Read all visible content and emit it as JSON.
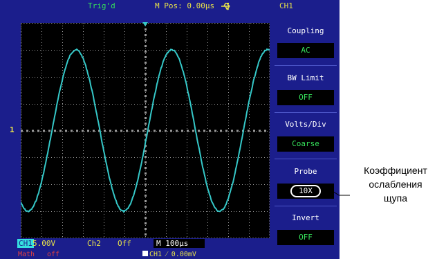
{
  "status": {
    "trigger_state": "Trig'd",
    "m_pos": "M Pos: 0.00μs",
    "channel": "CH1"
  },
  "menu": {
    "items": [
      {
        "title": "Coupling",
        "value": "AC"
      },
      {
        "title": "BW  Limit",
        "value": "OFF"
      },
      {
        "title": "Volts/Div",
        "value": "Coarse"
      },
      {
        "title": "Probe",
        "value": "10X"
      },
      {
        "title": "Invert",
        "value": "OFF"
      }
    ]
  },
  "bottom": {
    "ch1_label": "CH1",
    "ch1_scale": "5.00V",
    "ch2_label": "Ch2",
    "ch2_state": "Off",
    "timebase": "M 100μs",
    "math_label": "Math",
    "math_state": "off",
    "trigger_info": "CH1  ⁄  0.00mV"
  },
  "markers": {
    "ch1_marker": "1"
  },
  "annotation": {
    "line1": "Коэффициент",
    "line2": "ослабления",
    "line3": "щупа"
  },
  "colors": {
    "frame": "#1b1e8c",
    "trace": "#35c8c8",
    "label_yellow": "#e8e24a",
    "label_green": "#35e05a"
  },
  "chart_data": {
    "type": "line",
    "x_divisions": 12,
    "y_divisions": 8,
    "waveform": "sine",
    "cycles_on_screen": 2.6,
    "amplitude_divisions": 3,
    "phase_start": "near minimum, rising"
  }
}
